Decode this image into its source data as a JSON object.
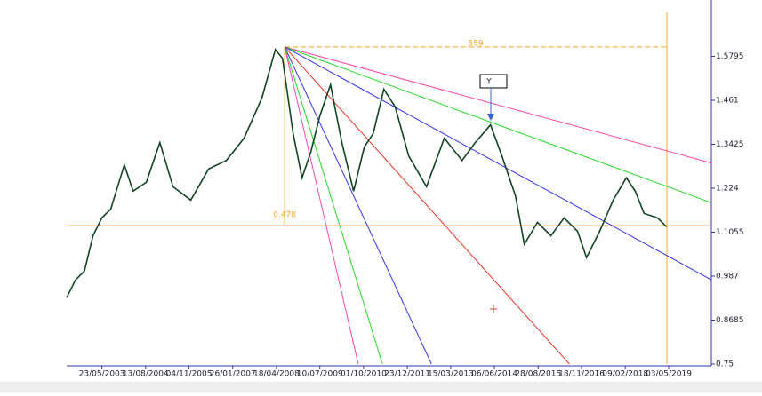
{
  "chart_data": {
    "type": "line",
    "x": [
      2002.4,
      2002.65,
      2002.9,
      2003.14,
      2003.39,
      2003.64,
      2004.02,
      2004.27,
      2004.64,
      2005.02,
      2005.39,
      2005.89,
      2006.39,
      2006.89,
      2007.39,
      2007.89,
      2008.27,
      2008.47,
      2008.77,
      2009.02,
      2009.27,
      2009.52,
      2009.82,
      2010.14,
      2010.47,
      2010.77,
      2011.02,
      2011.32,
      2011.64,
      2012.02,
      2012.52,
      2013.02,
      2013.52,
      2013.89,
      2014.32,
      2014.64,
      2015.02,
      2015.27,
      2015.64,
      2016.02,
      2016.39,
      2016.77,
      2017.02,
      2017.39,
      2017.77,
      2018.14,
      2018.39,
      2018.64,
      2019.02,
      2019.27
    ],
    "series": [
      {
        "color": "#114422",
        "values": [
          0.929,
          0.977,
          1.001,
          1.096,
          1.144,
          1.168,
          1.287,
          1.216,
          1.24,
          1.347,
          1.228,
          1.192,
          1.276,
          1.299,
          1.359,
          1.467,
          1.598,
          1.574,
          1.371,
          1.252,
          1.323,
          1.419,
          1.503,
          1.347,
          1.216,
          1.335,
          1.371,
          1.491,
          1.443,
          1.311,
          1.228,
          1.359,
          1.299,
          1.347,
          1.395,
          1.311,
          1.204,
          1.073,
          1.132,
          1.096,
          1.144,
          1.108,
          1.037,
          1.108,
          1.192,
          1.252,
          1.216,
          1.156,
          1.144,
          1.12
        ]
      }
    ],
    "xlim": [
      2002.4,
      2020.53
    ],
    "xticks": [
      {
        "value": 2003.39,
        "label": "23/05/2003"
      },
      {
        "value": 2004.62,
        "label": "13/08/2004"
      },
      {
        "value": 2005.84,
        "label": "04/11/2005"
      },
      {
        "value": 2007.07,
        "label": "26/01/2007"
      },
      {
        "value": 2008.3,
        "label": "18/04/2008"
      },
      {
        "value": 2009.52,
        "label": "10/07/2009"
      },
      {
        "value": 2010.75,
        "label": "01/10/2010"
      },
      {
        "value": 2011.98,
        "label": "23/12/2011"
      },
      {
        "value": 2013.2,
        "label": "15/03/2013"
      },
      {
        "value": 2014.43,
        "label": "06/06/2014"
      },
      {
        "value": 2015.66,
        "label": "28/08/2015"
      },
      {
        "value": 2016.88,
        "label": "18/11/2016"
      },
      {
        "value": 2018.11,
        "label": "09/02/2018"
      },
      {
        "value": 2019.33,
        "label": "03/05/2019"
      }
    ],
    "ylim": [
      0.75,
      1.698
    ],
    "yticks": [
      0.75,
      0.8685,
      0.987,
      1.1055,
      1.224,
      1.3425,
      1.461,
      1.5795
    ],
    "fan_lines": [
      {
        "color": "#ff44aa",
        "x": [
          2008.53,
          2020.53
        ],
        "y": [
          1.605,
          1.292
        ]
      },
      {
        "color": "#22dd22",
        "x": [
          2008.53,
          2020.53
        ],
        "y": [
          1.605,
          1.185
        ]
      },
      {
        "color": "#3333ee",
        "x": [
          2008.53,
          2020.53
        ],
        "y": [
          1.605,
          0.977
        ]
      },
      {
        "color": "#ee3322",
        "x": [
          2008.53,
          2016.54
        ],
        "y": [
          1.605,
          0.75
        ]
      },
      {
        "color": "#3333ee",
        "x": [
          2008.53,
          2012.66
        ],
        "y": [
          1.605,
          0.75
        ]
      },
      {
        "color": "#22dd22",
        "x": [
          2008.53,
          2011.28
        ],
        "y": [
          1.605,
          0.75
        ]
      },
      {
        "color": "#ff44aa",
        "x": [
          2008.53,
          2010.6
        ],
        "y": [
          1.605,
          0.75
        ]
      }
    ],
    "hline": {
      "value": 1.123,
      "color": "#f5a623"
    },
    "vline": 2019.28,
    "annotations": [
      "559",
      "0.478",
      "Y"
    ]
  }
}
